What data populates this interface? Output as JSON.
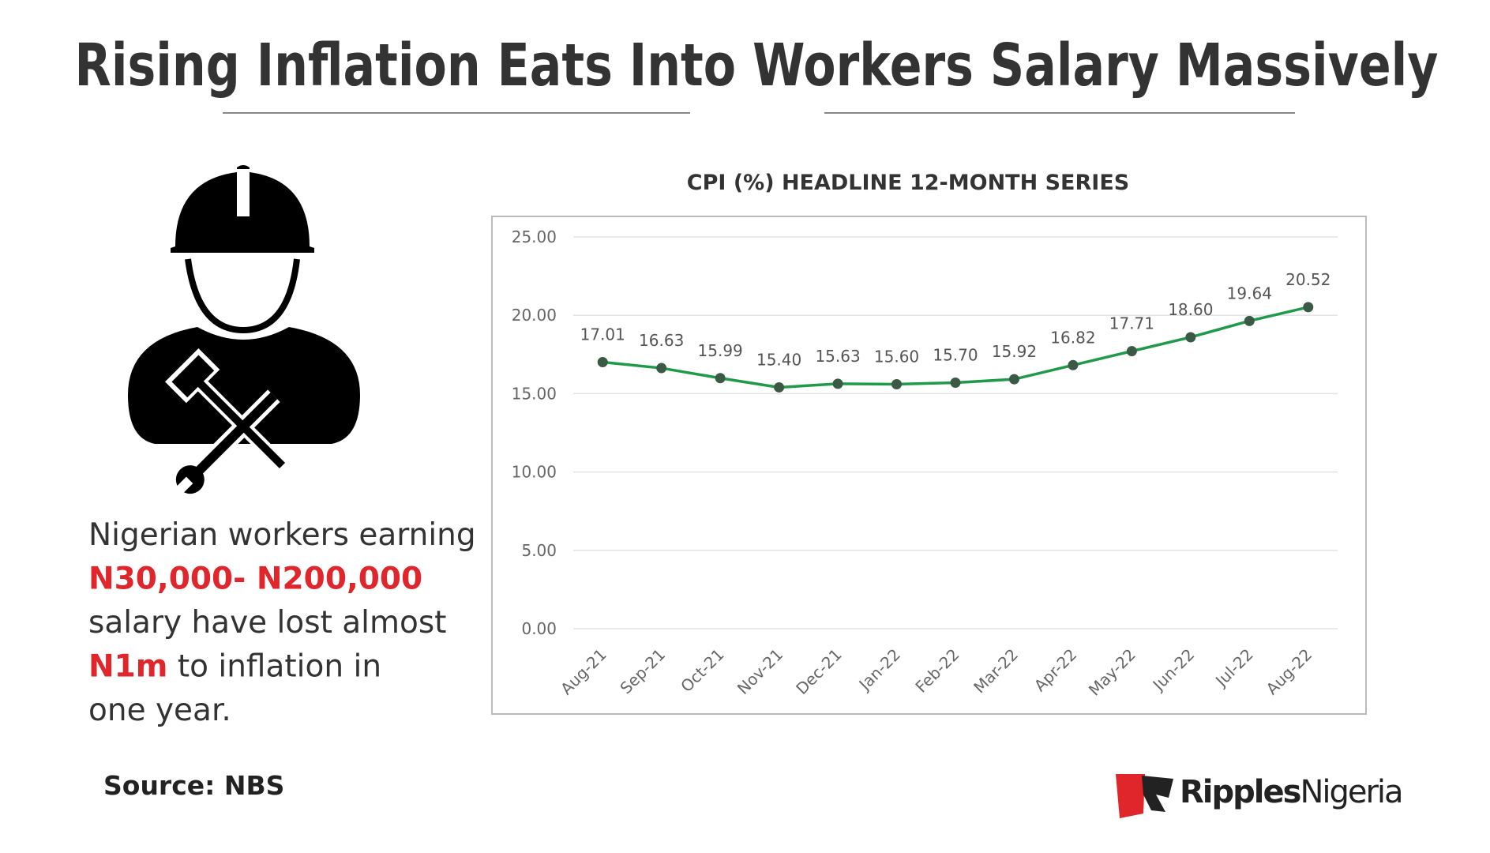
{
  "headline": "Rising Inflation Eats Into Workers Salary Massively",
  "text": {
    "lines": [
      [
        "Nigerian workers earning"
      ],
      [
        "N30,000- N200,000"
      ],
      [
        "salary have lost almost"
      ],
      [
        "N1m",
        "to inflation in"
      ],
      [
        "one year."
      ]
    ]
  },
  "source": "Source: NBS",
  "logo": {
    "bold": "Ripples",
    "light": "Nigeria"
  },
  "chart_data": {
    "type": "line",
    "title": "CPI (%)  HEADLINE 12-MONTH SERIES",
    "categories": [
      "Aug-21",
      "Sep-21",
      "Oct-21",
      "Nov-21",
      "Dec-21",
      "Jan-22",
      "Feb-22",
      "Mar-22",
      "Apr-22",
      "May-22",
      "Jun-22",
      "Jul-22",
      "Aug-22"
    ],
    "series": [
      {
        "name": "CPI (%)",
        "color": "#1f9a4b",
        "marker_color": "#3b5a45",
        "values": [
          17.01,
          16.63,
          15.99,
          15.4,
          15.63,
          15.6,
          15.7,
          15.92,
          16.82,
          17.71,
          18.6,
          19.64,
          20.52
        ],
        "value_labels": [
          "17.01",
          "16.63",
          "15.99",
          "15.40",
          "15.63",
          "15.60",
          "15.70",
          "15.92",
          "16.82",
          "17.71",
          "18.60",
          "19.64",
          "20.52"
        ]
      }
    ],
    "ylim": [
      0,
      25
    ],
    "yticks": [
      {
        "value": 0,
        "label": "0.00"
      },
      {
        "value": 5,
        "label": "5.00"
      },
      {
        "value": 10,
        "label": "10.00"
      },
      {
        "value": 15,
        "label": "15.00"
      },
      {
        "value": 20,
        "label": "20.00"
      },
      {
        "value": 25,
        "label": "25.00"
      }
    ],
    "grid": true
  }
}
